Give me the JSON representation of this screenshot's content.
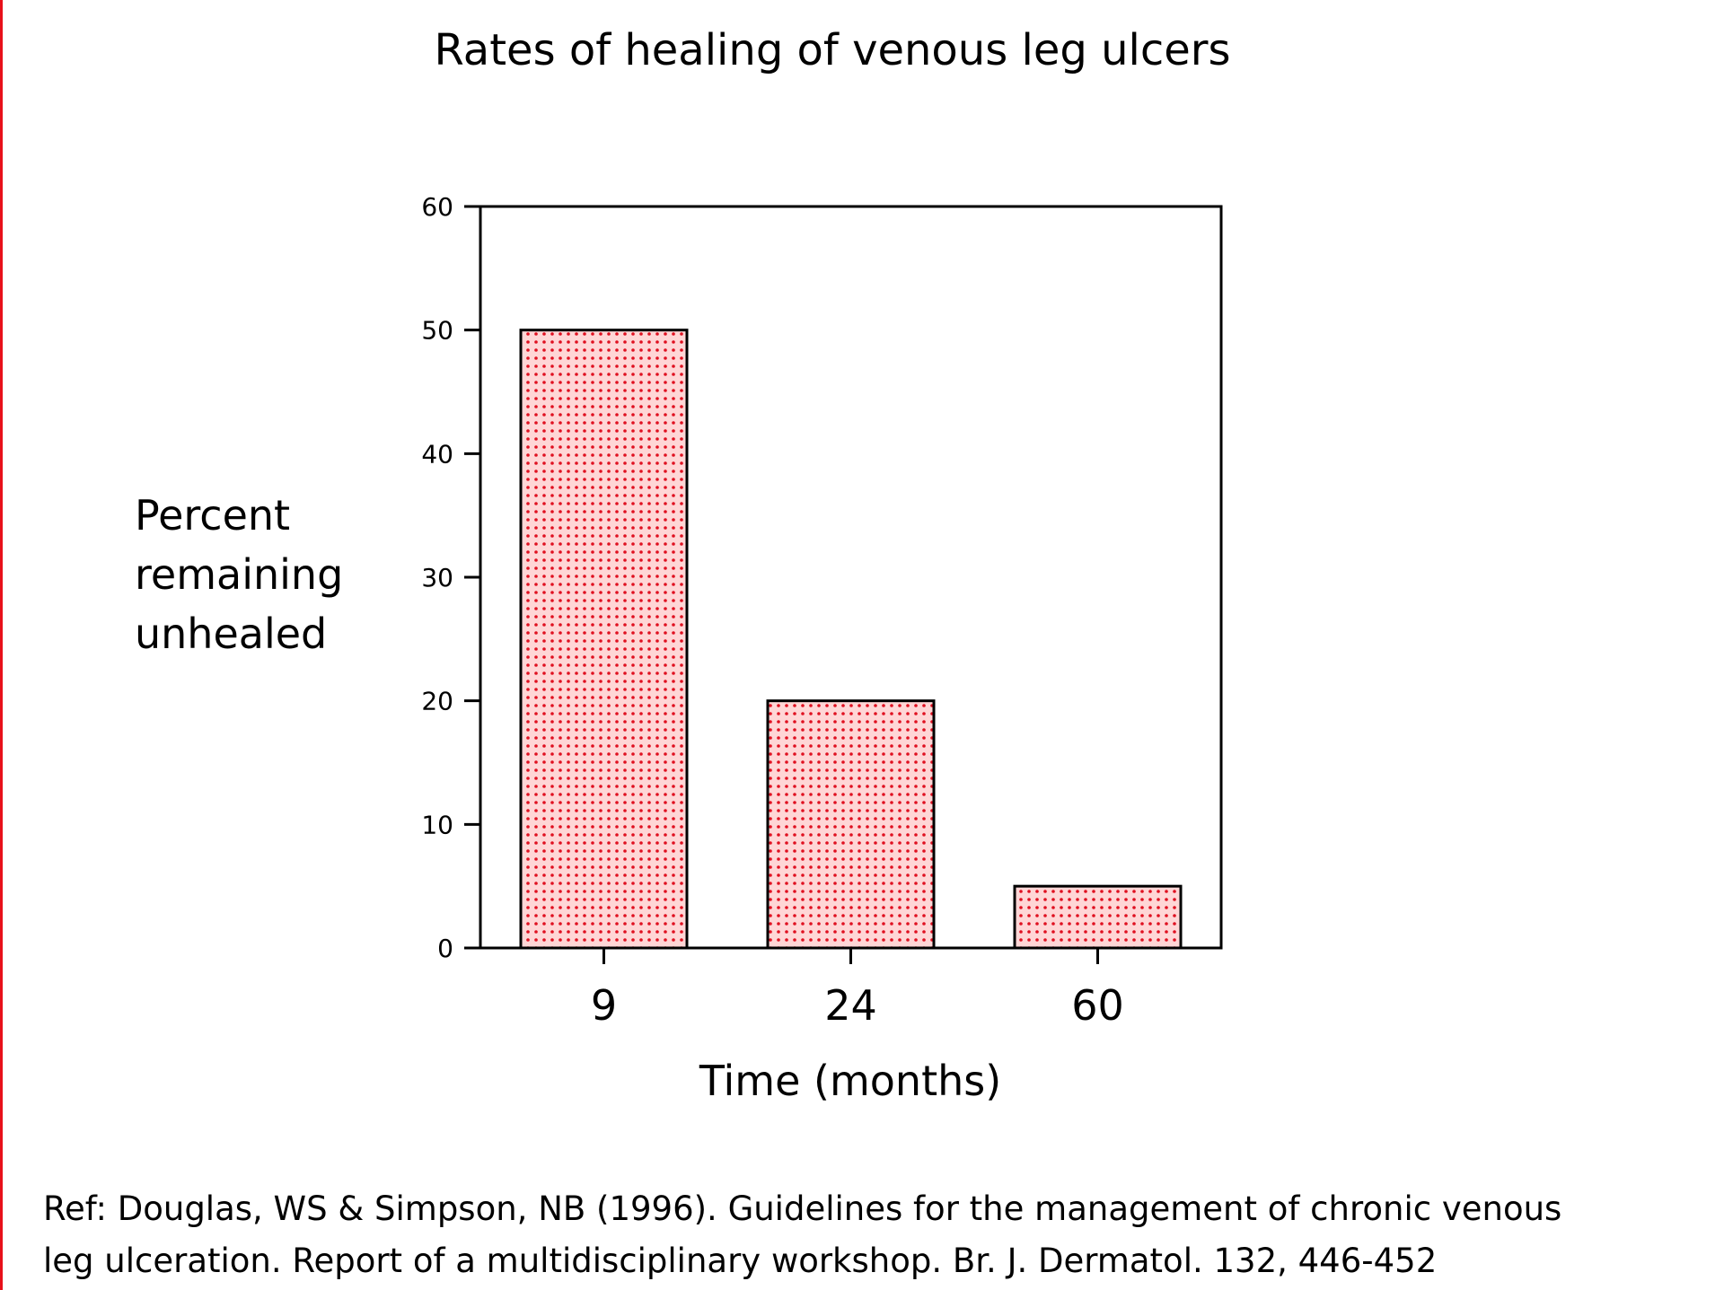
{
  "colors": {
    "bar_fill": "#ffd6d6",
    "bar_dots": "#e01020",
    "bar_stroke": "#000000",
    "left_border": "#e8101a",
    "axis": "#000000"
  },
  "chart_data": {
    "type": "bar",
    "title": "Rates of healing of venous leg ulcers",
    "ylabel_lines": [
      "Percent",
      "remaining",
      "unhealed"
    ],
    "xlabel": "Time (months)",
    "categories": [
      "9",
      "24",
      "60"
    ],
    "values": [
      50,
      20,
      5
    ],
    "ylim": [
      0,
      60
    ],
    "yticks": [
      0,
      10,
      20,
      30,
      40,
      50,
      60
    ],
    "grid": false,
    "legend": "none"
  },
  "reference": {
    "line1": "Ref: Douglas, WS & Simpson, NB (1996).  Guidelines for the management of chronic venous",
    "line2": "leg ulceration. Report of a multidisciplinary workshop. Br. J. Dermatol. 132, 446-452"
  }
}
